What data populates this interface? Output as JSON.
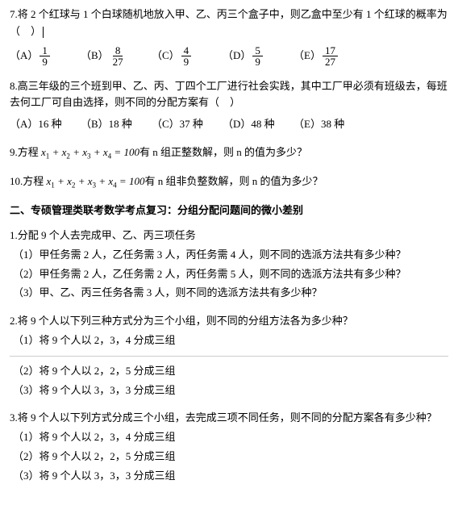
{
  "q7": {
    "text": "7.将 2 个红球与 1 个白球随机地放入甲、乙、丙三个盒子中，则乙盒中至少有 1 个红球的概率为（　）",
    "options": {
      "A_label": "（A）",
      "A_num": "1",
      "A_den": "9",
      "B_label": "（B）",
      "B_num": "8",
      "B_den": "27",
      "C_label": "（C）",
      "C_num": "4",
      "C_den": "9",
      "D_label": "（D）",
      "D_num": "5",
      "D_den": "9",
      "E_label": "（E）",
      "E_num": "17",
      "E_den": "27"
    }
  },
  "q8": {
    "text": "8.高三年级的三个班到甲、乙、丙、丁四个工厂进行社会实践，其中工厂甲必须有班级去，每班去何工厂可自由选择，则不同的分配方案有（　）",
    "options": {
      "A_label": "（A）",
      "A_val": "16 种",
      "B_label": "（B）",
      "B_val": "18 种",
      "C_label": "（C）",
      "C_val": "37 种",
      "D_label": "（D）",
      "D_val": "48 种",
      "E_label": "（E）",
      "E_val": "38 种"
    }
  },
  "q9": {
    "prefix": "9.方程 ",
    "formula_left": "x",
    "formula_end": " = 100",
    "suffix": "有 n 组正整数解，则 n 的值为多少？"
  },
  "q10": {
    "prefix": "10.方程 ",
    "formula_end": " = 100",
    "suffix": "有 n 组非负整数解，则 n 的值为多少？"
  },
  "section2_title": "二、专硕管理类联考数学考点复习：分组分配问题间的微小差别",
  "p1": {
    "text": "1.分配 9 个人去完成甲、乙、丙三项任务",
    "s1": "（1）甲任务需 2 人，乙任务需 3 人，丙任务需 4 人，则不同的选派方法共有多少种？",
    "s2": "（2）甲任务需 2 人，乙任务需 2 人，丙任务需 5 人，则不同的选派方法共有多少种？",
    "s3": "（3）甲、乙、丙三任务各需 3 人，则不同的选派方法共有多少种？"
  },
  "p2": {
    "text": "2.将 9 个人以下列三种方式分为三个小组，则不同的分组方法各为多少种？",
    "s1": "（1）将 9 个人以 2，3，4 分成三组",
    "s2": "（2）将 9 个人以 2，2，5 分成三组",
    "s3": "（3）将 9 个人以 3，3，3 分成三组"
  },
  "p3": {
    "text": "3.将 9 个人以下列方式分成三个小组，去完成三项不同任务，则不同的分配方案各有多少种？",
    "s1": "（1）将 9 个人以 2，3，4 分成三组",
    "s2": "（2）将 9 个人以 2，2，5 分成三组",
    "s3": "（3）将 9 个人以 3，3，3 分成三组"
  },
  "math": {
    "x": "x",
    "plus": " + ",
    "sub1": "1",
    "sub2": "2",
    "sub3": "3",
    "sub4": "4"
  }
}
